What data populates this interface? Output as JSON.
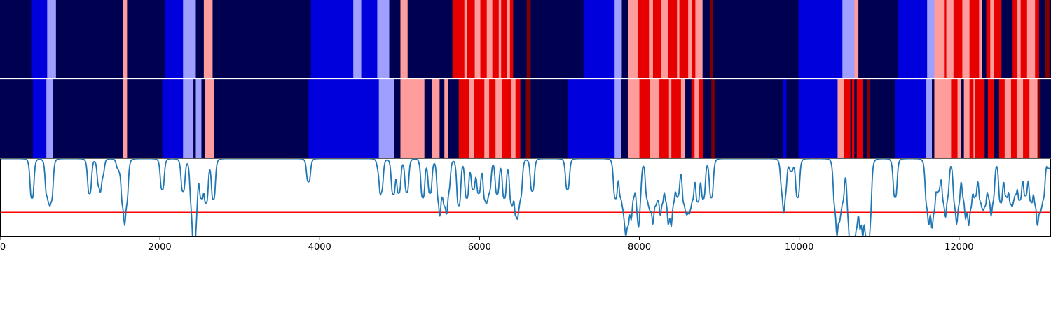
{
  "chart_data": [
    {
      "type": "heatmap",
      "title": "",
      "xlim": [
        0,
        13150
      ],
      "colors": {
        "d": "#000050",
        "b": "#0000dd",
        "lb": "#9f9fff",
        "lr": "#ff9c9c",
        "r": "#e60000",
        "dr": "#800000"
      },
      "segments": [
        [
          0,
          390,
          "d"
        ],
        [
          390,
          590,
          "b"
        ],
        [
          590,
          700,
          "lb"
        ],
        [
          700,
          1540,
          "d"
        ],
        [
          1540,
          1590,
          "lr"
        ],
        [
          1590,
          2060,
          "d"
        ],
        [
          2060,
          2290,
          "b"
        ],
        [
          2290,
          2450,
          "lb"
        ],
        [
          2450,
          2550,
          "d"
        ],
        [
          2550,
          2660,
          "lr"
        ],
        [
          2660,
          3890,
          "d"
        ],
        [
          3890,
          4420,
          "b"
        ],
        [
          4420,
          4520,
          "lb"
        ],
        [
          4520,
          4720,
          "b"
        ],
        [
          4720,
          4870,
          "lb"
        ],
        [
          4870,
          5010,
          "d"
        ],
        [
          5010,
          5100,
          "lr"
        ],
        [
          5100,
          5660,
          "d"
        ],
        [
          5660,
          5810,
          "r"
        ],
        [
          5810,
          5840,
          "lr"
        ],
        [
          5840,
          5940,
          "r"
        ],
        [
          5940,
          6010,
          "lr"
        ],
        [
          6010,
          6090,
          "r"
        ],
        [
          6090,
          6160,
          "lr"
        ],
        [
          6160,
          6240,
          "r"
        ],
        [
          6240,
          6270,
          "lr"
        ],
        [
          6270,
          6340,
          "r"
        ],
        [
          6340,
          6380,
          "lr"
        ],
        [
          6380,
          6420,
          "r"
        ],
        [
          6420,
          6590,
          "d"
        ],
        [
          6590,
          6640,
          "dr"
        ],
        [
          6640,
          7300,
          "d"
        ],
        [
          7300,
          7690,
          "b"
        ],
        [
          7690,
          7780,
          "lb"
        ],
        [
          7780,
          7860,
          "d"
        ],
        [
          7860,
          7980,
          "lr"
        ],
        [
          7980,
          8120,
          "r"
        ],
        [
          8120,
          8170,
          "lr"
        ],
        [
          8170,
          8270,
          "r"
        ],
        [
          8270,
          8360,
          "lr"
        ],
        [
          8360,
          8470,
          "r"
        ],
        [
          8470,
          8500,
          "lr"
        ],
        [
          8500,
          8610,
          "r"
        ],
        [
          8610,
          8660,
          "lr"
        ],
        [
          8660,
          8700,
          "r"
        ],
        [
          8700,
          8790,
          "lr"
        ],
        [
          8790,
          8880,
          "d"
        ],
        [
          8880,
          8920,
          "dr"
        ],
        [
          8920,
          9990,
          "d"
        ],
        [
          9990,
          10540,
          "b"
        ],
        [
          10540,
          10690,
          "lb"
        ],
        [
          10690,
          10740,
          "lr"
        ],
        [
          10740,
          11230,
          "d"
        ],
        [
          11230,
          11600,
          "b"
        ],
        [
          11600,
          11690,
          "lb"
        ],
        [
          11690,
          11820,
          "lr"
        ],
        [
          11820,
          11840,
          "r"
        ],
        [
          11840,
          11930,
          "lr"
        ],
        [
          11930,
          12040,
          "r"
        ],
        [
          12040,
          12130,
          "lr"
        ],
        [
          12130,
          12250,
          "r"
        ],
        [
          12250,
          12290,
          "lr"
        ],
        [
          12290,
          12340,
          "d"
        ],
        [
          12340,
          12390,
          "r"
        ],
        [
          12390,
          12440,
          "lr"
        ],
        [
          12440,
          12530,
          "r"
        ],
        [
          12530,
          12670,
          "d"
        ],
        [
          12670,
          12730,
          "r"
        ],
        [
          12730,
          12770,
          "lr"
        ],
        [
          12770,
          12850,
          "r"
        ],
        [
          12850,
          12950,
          "lr"
        ],
        [
          12950,
          13000,
          "r"
        ],
        [
          13000,
          13080,
          "d"
        ],
        [
          13080,
          13130,
          "dr"
        ],
        [
          13130,
          13150,
          "d"
        ]
      ]
    },
    {
      "type": "heatmap",
      "title": "",
      "xlim": [
        0,
        13150
      ],
      "colors": {
        "d": "#000050",
        "b": "#0000dd",
        "lb": "#9f9fff",
        "lr": "#ff9c9c",
        "r": "#e60000",
        "dr": "#800000"
      },
      "segments": [
        [
          0,
          410,
          "d"
        ],
        [
          410,
          580,
          "b"
        ],
        [
          580,
          660,
          "lb"
        ],
        [
          660,
          1540,
          "d"
        ],
        [
          1540,
          1590,
          "lr"
        ],
        [
          1590,
          2030,
          "d"
        ],
        [
          2030,
          2290,
          "b"
        ],
        [
          2290,
          2420,
          "lb"
        ],
        [
          2420,
          2450,
          "d"
        ],
        [
          2450,
          2520,
          "lb"
        ],
        [
          2520,
          2560,
          "d"
        ],
        [
          2560,
          2680,
          "lr"
        ],
        [
          2680,
          3860,
          "d"
        ],
        [
          3860,
          4740,
          "b"
        ],
        [
          4740,
          4930,
          "lb"
        ],
        [
          4930,
          5010,
          "d"
        ],
        [
          5010,
          5310,
          "lr"
        ],
        [
          5310,
          5400,
          "d"
        ],
        [
          5400,
          5500,
          "lr"
        ],
        [
          5500,
          5560,
          "d"
        ],
        [
          5560,
          5610,
          "lr"
        ],
        [
          5610,
          5740,
          "d"
        ],
        [
          5740,
          5870,
          "r"
        ],
        [
          5870,
          5930,
          "lr"
        ],
        [
          5930,
          6060,
          "r"
        ],
        [
          6060,
          6120,
          "lr"
        ],
        [
          6120,
          6200,
          "r"
        ],
        [
          6200,
          6280,
          "lr"
        ],
        [
          6280,
          6400,
          "r"
        ],
        [
          6400,
          6450,
          "lr"
        ],
        [
          6450,
          6510,
          "r"
        ],
        [
          6510,
          6580,
          "d"
        ],
        [
          6580,
          6640,
          "dr"
        ],
        [
          6640,
          7100,
          "d"
        ],
        [
          7100,
          7690,
          "b"
        ],
        [
          7690,
          7770,
          "lb"
        ],
        [
          7770,
          7860,
          "d"
        ],
        [
          7860,
          8000,
          "lr"
        ],
        [
          8000,
          8130,
          "r"
        ],
        [
          8130,
          8250,
          "lr"
        ],
        [
          8250,
          8370,
          "r"
        ],
        [
          8370,
          8400,
          "lr"
        ],
        [
          8400,
          8520,
          "r"
        ],
        [
          8520,
          8570,
          "lr"
        ],
        [
          8570,
          8650,
          "d"
        ],
        [
          8650,
          8690,
          "r"
        ],
        [
          8690,
          8740,
          "lr"
        ],
        [
          8740,
          8800,
          "r"
        ],
        [
          8800,
          8900,
          "d"
        ],
        [
          8900,
          8940,
          "dr"
        ],
        [
          8940,
          9800,
          "d"
        ],
        [
          9800,
          9840,
          "b"
        ],
        [
          9840,
          9990,
          "d"
        ],
        [
          9990,
          10480,
          "b"
        ],
        [
          10480,
          10560,
          "lr"
        ],
        [
          10560,
          10640,
          "r"
        ],
        [
          10640,
          10660,
          "d"
        ],
        [
          10660,
          10690,
          "r"
        ],
        [
          10690,
          10720,
          "d"
        ],
        [
          10720,
          10800,
          "r"
        ],
        [
          10800,
          10850,
          "d"
        ],
        [
          10850,
          10880,
          "dr"
        ],
        [
          10880,
          11200,
          "d"
        ],
        [
          11200,
          11590,
          "b"
        ],
        [
          11590,
          11660,
          "lb"
        ],
        [
          11660,
          11690,
          "d"
        ],
        [
          11690,
          11900,
          "lr"
        ],
        [
          11900,
          11980,
          "r"
        ],
        [
          11980,
          12020,
          "lr"
        ],
        [
          12020,
          12060,
          "d"
        ],
        [
          12060,
          12130,
          "lr"
        ],
        [
          12130,
          12180,
          "r"
        ],
        [
          12180,
          12200,
          "lr"
        ],
        [
          12200,
          12320,
          "r"
        ],
        [
          12320,
          12360,
          "d"
        ],
        [
          12360,
          12440,
          "r"
        ],
        [
          12440,
          12500,
          "d"
        ],
        [
          12500,
          12570,
          "r"
        ],
        [
          12570,
          12650,
          "lr"
        ],
        [
          12650,
          12720,
          "r"
        ],
        [
          12720,
          12800,
          "lr"
        ],
        [
          12800,
          12880,
          "r"
        ],
        [
          12880,
          12980,
          "lr"
        ],
        [
          12980,
          13020,
          "dr"
        ],
        [
          13020,
          13150,
          "d"
        ]
      ]
    },
    {
      "type": "line",
      "title": "",
      "xlabel": "",
      "ylabel": "",
      "xlim": [
        0,
        13150
      ],
      "ylim": [
        0,
        1
      ],
      "xticks": [
        "0",
        "2000",
        "4000",
        "6000",
        "8000",
        "10000",
        "12000"
      ],
      "xtick_values": [
        0,
        2000,
        4000,
        6000,
        8000,
        10000,
        12000
      ],
      "threshold": 0.31,
      "baseline": 0.995,
      "line_color": "#1f77b4",
      "threshold_color": "#ff0000",
      "dips": [
        [
          400,
          0.49
        ],
        [
          590,
          0.55
        ],
        [
          640,
          0.48
        ],
        [
          1120,
          0.55
        ],
        [
          1240,
          0.66
        ],
        [
          1280,
          0.8
        ],
        [
          1480,
          0.88
        ],
        [
          1540,
          0.45
        ],
        [
          1580,
          0.47
        ],
        [
          2030,
          0.6
        ],
        [
          2290,
          0.58
        ],
        [
          2400,
          0.5
        ],
        [
          2430,
          0.43
        ],
        [
          2450,
          0.52
        ],
        [
          2520,
          0.53
        ],
        [
          2580,
          0.46
        ],
        [
          2670,
          0.48
        ],
        [
          3860,
          0.7
        ],
        [
          4740,
          0.9
        ],
        [
          4770,
          0.6
        ],
        [
          4920,
          0.55
        ],
        [
          4990,
          0.57
        ],
        [
          5090,
          0.57
        ],
        [
          5290,
          0.5
        ],
        [
          5380,
          0.56
        ],
        [
          5490,
          0.52
        ],
        [
          5520,
          0.7
        ],
        [
          5570,
          0.48
        ],
        [
          5610,
          0.63
        ],
        [
          5740,
          0.4
        ],
        [
          5840,
          0.5
        ],
        [
          5920,
          0.62
        ],
        [
          5990,
          0.57
        ],
        [
          6070,
          0.5
        ],
        [
          6120,
          0.6
        ],
        [
          6220,
          0.55
        ],
        [
          6310,
          0.5
        ],
        [
          6400,
          0.45
        ],
        [
          6460,
          0.32
        ],
        [
          6510,
          0.53
        ],
        [
          6660,
          0.58
        ],
        [
          7100,
          0.6
        ],
        [
          7700,
          0.5
        ],
        [
          7770,
          0.55
        ],
        [
          7820,
          0.46
        ],
        [
          7840,
          0.6
        ],
        [
          7880,
          0.46
        ],
        [
          7920,
          0.6
        ],
        [
          7980,
          0.5
        ],
        [
          8000,
          0.62
        ],
        [
          8100,
          0.52
        ],
        [
          8150,
          0.45
        ],
        [
          8190,
          0.52
        ],
        [
          8240,
          0.6
        ],
        [
          8280,
          0.5
        ],
        [
          8340,
          0.55
        ],
        [
          8380,
          0.42
        ],
        [
          8420,
          0.52
        ],
        [
          8480,
          0.55
        ],
        [
          8560,
          0.47
        ],
        [
          8610,
          0.4
        ],
        [
          8660,
          0.52
        ],
        [
          8730,
          0.47
        ],
        [
          8800,
          0.5
        ],
        [
          8900,
          0.5
        ],
        [
          9790,
          0.64
        ],
        [
          9820,
          0.6
        ],
        [
          9900,
          0.85
        ],
        [
          9980,
          0.5
        ],
        [
          10450,
          0.44
        ],
        [
          10490,
          0.32
        ],
        [
          10540,
          0.5
        ],
        [
          10620,
          0.38
        ],
        [
          10650,
          0.35
        ],
        [
          10680,
          0.43
        ],
        [
          10700,
          0.58
        ],
        [
          10740,
          0.5
        ],
        [
          10780,
          0.45
        ],
        [
          10810,
          0.55
        ],
        [
          10850,
          0.3
        ],
        [
          10880,
          0.3
        ],
        [
          11200,
          0.5
        ],
        [
          11600,
          0.45
        ],
        [
          11640,
          0.5
        ],
        [
          11680,
          0.4
        ],
        [
          11740,
          0.62
        ],
        [
          11810,
          0.5
        ],
        [
          11850,
          0.55
        ],
        [
          11950,
          0.46
        ],
        [
          11990,
          0.48
        ],
        [
          12060,
          0.56
        ],
        [
          12100,
          0.5
        ],
        [
          12140,
          0.45
        ],
        [
          12200,
          0.55
        ],
        [
          12270,
          0.5
        ],
        [
          12320,
          0.45
        ],
        [
          12380,
          0.58
        ],
        [
          12420,
          0.5
        ],
        [
          12520,
          0.45
        ],
        [
          12590,
          0.55
        ],
        [
          12650,
          0.47
        ],
        [
          12700,
          0.6
        ],
        [
          12760,
          0.5
        ],
        [
          12830,
          0.55
        ],
        [
          12900,
          0.48
        ],
        [
          12960,
          0.5
        ],
        [
          13000,
          0.43
        ],
        [
          13050,
          0.52
        ],
        [
          13130,
          0.88
        ]
      ]
    }
  ]
}
